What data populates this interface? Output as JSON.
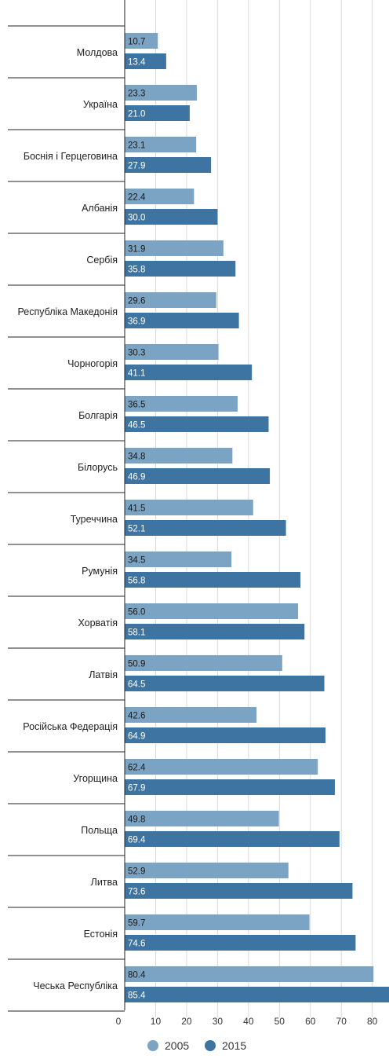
{
  "chart_data": {
    "type": "bar",
    "orientation": "horizontal",
    "categories": [
      "Молдова",
      "Україна",
      "Боснія і Герцеговина",
      "Албанія",
      "Сербія",
      "Республіка Македонія",
      "Чорногорія",
      "Болгарія",
      "Білорусь",
      "Туреччина",
      "Румунія",
      "Хорватія",
      "Латвія",
      "Російська Федерація",
      "Угорщина",
      "Польща",
      "Литва",
      "Естонія",
      "Чеська Республіка"
    ],
    "series": [
      {
        "name": "2005",
        "color": "#7aa3c4",
        "values": [
          10.7,
          23.3,
          23.1,
          22.4,
          31.9,
          29.6,
          30.3,
          36.5,
          34.8,
          41.5,
          34.5,
          56.0,
          50.9,
          42.6,
          62.4,
          49.8,
          52.9,
          59.7,
          80.4
        ],
        "labels": [
          "10.7",
          "23.3",
          "23.1",
          "22.4",
          "31.9",
          "29.6",
          "30.3",
          "36.5",
          "34.8",
          "41.5",
          "34.5",
          "56.0",
          "50.9",
          "42.6",
          "62.4",
          "49.8",
          "52.9",
          "59.7",
          "80.4"
        ]
      },
      {
        "name": "2015",
        "color": "#3d74a1",
        "values": [
          13.4,
          21.0,
          27.9,
          30.0,
          35.8,
          36.9,
          41.1,
          46.5,
          46.9,
          52.1,
          56.8,
          58.1,
          64.5,
          64.9,
          67.9,
          69.4,
          73.6,
          74.6,
          85.4
        ],
        "labels": [
          "13.4",
          "21.0",
          "27.9",
          "30.0",
          "35.8",
          "36.9",
          "41.1",
          "46.5",
          "46.9",
          "52.1",
          "56.8",
          "58.1",
          "64.5",
          "64.9",
          "67.9",
          "69.4",
          "73.6",
          "74.6",
          "85.4"
        ]
      }
    ],
    "x_ticks": [
      0,
      10,
      20,
      30,
      40,
      50,
      60,
      70,
      80
    ],
    "x_tick_labels": [
      "0",
      "10",
      "20",
      "30",
      "40",
      "50",
      "60",
      "70",
      "80"
    ],
    "xlim": [
      0,
      85.4
    ],
    "grid": true,
    "legend": "bottom-center",
    "title": "",
    "xlabel": "",
    "ylabel": ""
  }
}
